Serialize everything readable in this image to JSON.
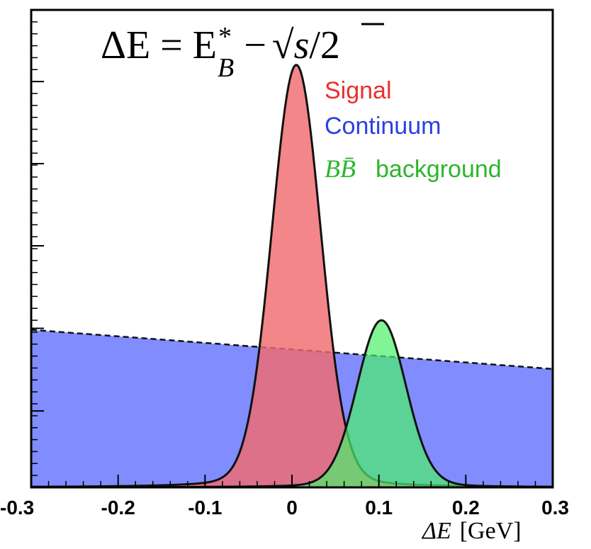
{
  "chart_data": {
    "type": "area",
    "title": "ΔE = E*B − √s/2",
    "formula": {
      "lhs": "ΔE = E",
      "sup": "*",
      "sub": "B",
      "minus": "−",
      "sqrt": "√",
      "s": "s",
      "rest": "/2"
    },
    "xlabel": "ΔE [GeV]",
    "xlabel_parts": {
      "var": "ΔE",
      "unit": "[GeV]"
    },
    "xlim": [
      -0.3,
      0.3
    ],
    "ylim": [
      0,
      1.0
    ],
    "x_ticks": [
      {
        "value": -0.3,
        "label": "-0.3"
      },
      {
        "value": -0.2,
        "label": "-0.2"
      },
      {
        "value": -0.1,
        "label": "-0.1"
      },
      {
        "value": 0.0,
        "label": "0"
      },
      {
        "value": 0.1,
        "label": "0.1"
      },
      {
        "value": 0.2,
        "label": "0.2"
      },
      {
        "value": 0.3,
        "label": "0.3"
      }
    ],
    "x_tick_labels": [
      "-0.3",
      "-0.2",
      "-0.1",
      "0",
      "0.1",
      "0.2",
      "0.3"
    ],
    "legend": [
      {
        "name": "Signal",
        "color": "#e8302a"
      },
      {
        "name": "Continuum",
        "color": "#2b3fe0"
      },
      {
        "name_math": "BB̄",
        "name": "background",
        "color": "#2db52d"
      }
    ],
    "series": [
      {
        "name": "Signal",
        "shape": "peak",
        "center": 0.005,
        "peak": 0.885,
        "fill": "#f06b6f",
        "opacity": 0.82
      },
      {
        "name": "Continuum",
        "shape": "linear",
        "x": [
          -0.3,
          0.3
        ],
        "y": [
          0.33,
          0.248
        ],
        "fill": "#5e6bff",
        "opacity": 0.78,
        "dashed_outline": true
      },
      {
        "name": "BB̄ background",
        "shape": "peak",
        "center": 0.103,
        "peak": 0.35,
        "fill": "#4cf06a",
        "opacity": 0.7
      }
    ],
    "grid": false,
    "legend_placement": "top-right"
  }
}
